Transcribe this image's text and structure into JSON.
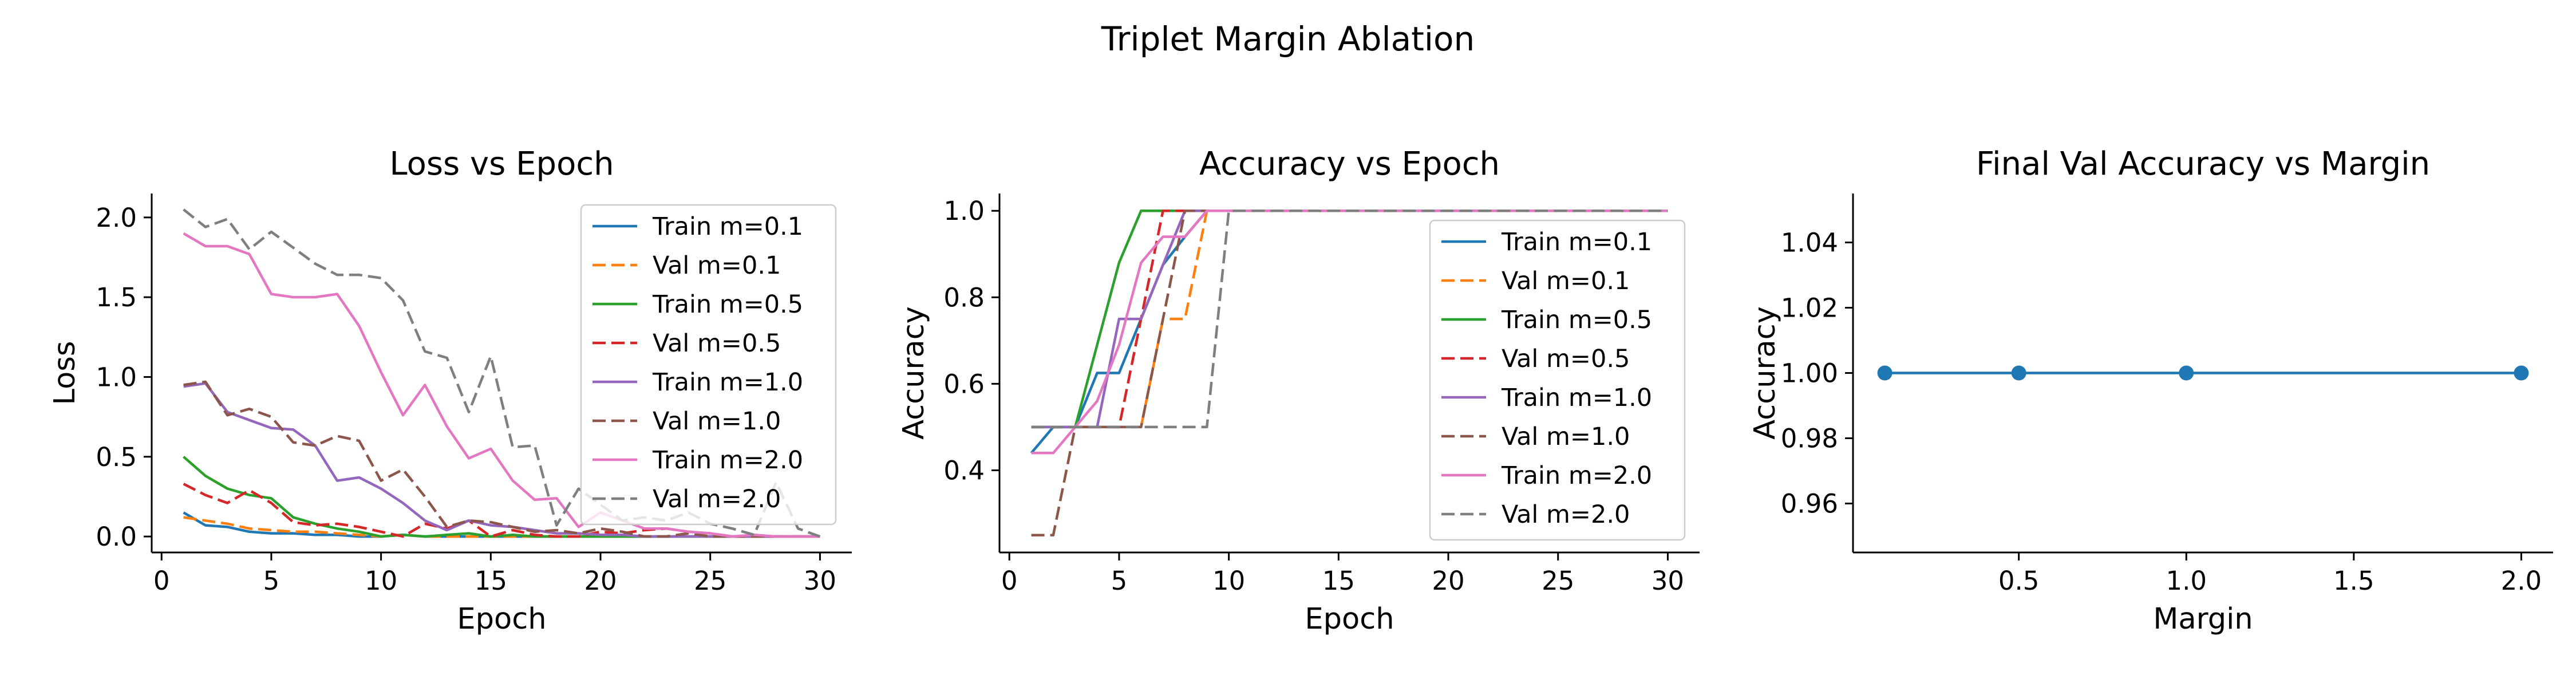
{
  "suptitle": "Triplet Margin Ablation",
  "chart_data": [
    {
      "type": "line",
      "title": "Loss vs Epoch",
      "xlabel": "Epoch",
      "ylabel": "Loss",
      "xlim": [
        -0.45,
        31.45
      ],
      "ylim": [
        -0.1,
        2.15
      ],
      "xticks": [
        0,
        5,
        10,
        15,
        20,
        25,
        30
      ],
      "yticks": [
        0.0,
        0.5,
        1.0,
        1.5,
        2.0
      ],
      "ytick_labels": [
        "0.0",
        "0.5",
        "1.0",
        "1.5",
        "2.0"
      ],
      "legend": "upper right",
      "grid": false,
      "x": [
        1,
        2,
        3,
        4,
        5,
        6,
        7,
        8,
        9,
        10,
        11,
        12,
        13,
        14,
        15,
        16,
        17,
        18,
        19,
        20,
        21,
        22,
        23,
        24,
        25,
        26,
        27,
        28,
        29,
        30
      ],
      "series": [
        {
          "name": "Train m=0.1",
          "color": "#1f77b4",
          "dash": "solid",
          "values": [
            0.15,
            0.07,
            0.06,
            0.03,
            0.02,
            0.02,
            0.01,
            0.01,
            0.0,
            0.0,
            0.01,
            0.0,
            0.0,
            0.0,
            0.0,
            0.0,
            0.0,
            0.0,
            0.0,
            0.0,
            0.0,
            0.0,
            0.0,
            0.0,
            0.0,
            0.0,
            0.0,
            0.0,
            0.0,
            0.0
          ]
        },
        {
          "name": "Val m=0.1",
          "color": "#ff7f0e",
          "dash": "dashed",
          "values": [
            0.12,
            0.1,
            0.08,
            0.05,
            0.04,
            0.03,
            0.03,
            0.02,
            0.01,
            0.0,
            0.01,
            0.0,
            0.0,
            0.0,
            0.0,
            0.0,
            0.0,
            0.0,
            0.0,
            0.0,
            0.0,
            0.0,
            0.0,
            0.0,
            0.0,
            0.0,
            0.0,
            0.0,
            0.0,
            0.0
          ]
        },
        {
          "name": "Train m=0.5",
          "color": "#2ca02c",
          "dash": "solid",
          "values": [
            0.5,
            0.38,
            0.3,
            0.26,
            0.24,
            0.12,
            0.08,
            0.05,
            0.03,
            0.0,
            0.01,
            0.0,
            0.01,
            0.02,
            0.0,
            0.01,
            0.0,
            0.0,
            0.0,
            0.0,
            0.0,
            0.0,
            0.0,
            0.0,
            0.0,
            0.0,
            0.0,
            0.0,
            0.0,
            0.0
          ]
        },
        {
          "name": "Val m=0.5",
          "color": "#d62728",
          "dash": "dashed",
          "values": [
            0.33,
            0.26,
            0.21,
            0.29,
            0.21,
            0.09,
            0.07,
            0.08,
            0.06,
            0.03,
            0.0,
            0.08,
            0.05,
            0.1,
            0.0,
            0.04,
            0.01,
            0.0,
            0.0,
            0.03,
            0.02,
            0.04,
            0.05,
            0.03,
            0.02,
            0.0,
            0.0,
            0.0,
            0.0,
            0.0
          ]
        },
        {
          "name": "Train m=1.0",
          "color": "#9467bd",
          "dash": "solid",
          "values": [
            0.94,
            0.96,
            0.78,
            0.73,
            0.68,
            0.67,
            0.57,
            0.35,
            0.37,
            0.3,
            0.21,
            0.1,
            0.04,
            0.1,
            0.07,
            0.06,
            0.04,
            0.02,
            0.02,
            0.01,
            0.01,
            0.0,
            0.0,
            0.0,
            0.0,
            0.0,
            0.0,
            0.0,
            0.0,
            0.0
          ]
        },
        {
          "name": "Val m=1.0",
          "color": "#8c564b",
          "dash": "dashed",
          "values": [
            0.95,
            0.97,
            0.76,
            0.8,
            0.75,
            0.59,
            0.57,
            0.63,
            0.6,
            0.35,
            0.42,
            0.25,
            0.06,
            0.1,
            0.09,
            0.06,
            0.03,
            0.04,
            0.02,
            0.05,
            0.03,
            0.0,
            0.0,
            0.02,
            0.0,
            0.0,
            0.0,
            0.0,
            0.0,
            0.0
          ]
        },
        {
          "name": "Train m=2.0",
          "color": "#e377c2",
          "dash": "solid",
          "values": [
            1.9,
            1.82,
            1.82,
            1.77,
            1.52,
            1.5,
            1.5,
            1.52,
            1.32,
            1.03,
            0.76,
            0.95,
            0.69,
            0.49,
            0.55,
            0.35,
            0.23,
            0.24,
            0.06,
            0.15,
            0.1,
            0.05,
            0.05,
            0.03,
            0.02,
            0.0,
            0.01,
            0.0,
            0.0,
            0.0
          ]
        },
        {
          "name": "Val m=2.0",
          "color": "#7f7f7f",
          "dash": "dashed",
          "values": [
            2.05,
            1.94,
            1.99,
            1.8,
            1.91,
            1.81,
            1.71,
            1.64,
            1.64,
            1.62,
            1.48,
            1.16,
            1.12,
            0.78,
            1.13,
            0.56,
            0.57,
            0.07,
            0.3,
            0.2,
            0.1,
            0.12,
            0.1,
            0.15,
            0.08,
            0.05,
            0.01,
            0.34,
            0.05,
            0.0
          ]
        }
      ]
    },
    {
      "type": "line",
      "title": "Accuracy vs Epoch",
      "xlabel": "Epoch",
      "ylabel": "Accuracy",
      "xlim": [
        -0.45,
        31.45
      ],
      "ylim": [
        0.21,
        1.04
      ],
      "xticks": [
        0,
        5,
        10,
        15,
        20,
        25,
        30
      ],
      "yticks": [
        0.4,
        0.6,
        0.8,
        1.0
      ],
      "ytick_labels": [
        "0.4",
        "0.6",
        "0.8",
        "1.0"
      ],
      "legend": "right",
      "grid": false,
      "x": [
        1,
        2,
        3,
        4,
        5,
        6,
        7,
        8,
        9,
        10,
        11,
        12,
        13,
        14,
        15,
        16,
        17,
        18,
        19,
        20,
        21,
        22,
        23,
        24,
        25,
        26,
        27,
        28,
        29,
        30
      ],
      "series": [
        {
          "name": "Train m=0.1",
          "color": "#1f77b4",
          "dash": "solid",
          "values": [
            0.44,
            0.5,
            0.5,
            0.625,
            0.625,
            0.75,
            0.875,
            0.94,
            1,
            1,
            1,
            1,
            1,
            1,
            1,
            1,
            1,
            1,
            1,
            1,
            1,
            1,
            1,
            1,
            1,
            1,
            1,
            1,
            1,
            1
          ]
        },
        {
          "name": "Val m=0.1",
          "color": "#ff7f0e",
          "dash": "dashed",
          "values": [
            0.5,
            0.5,
            0.5,
            0.5,
            0.5,
            0.5,
            0.75,
            0.75,
            1,
            1,
            1,
            1,
            1,
            1,
            1,
            1,
            1,
            1,
            1,
            1,
            1,
            1,
            1,
            1,
            1,
            1,
            1,
            1,
            1,
            1
          ]
        },
        {
          "name": "Train m=0.5",
          "color": "#2ca02c",
          "dash": "solid",
          "values": [
            0.5,
            0.5,
            0.5,
            0.69,
            0.88,
            1,
            1,
            1,
            1,
            1,
            1,
            1,
            1,
            1,
            1,
            1,
            1,
            1,
            1,
            1,
            1,
            1,
            1,
            1,
            1,
            1,
            1,
            1,
            1,
            1
          ]
        },
        {
          "name": "Val m=0.5",
          "color": "#d62728",
          "dash": "dashed",
          "values": [
            0.5,
            0.5,
            0.5,
            0.5,
            0.5,
            0.75,
            1,
            1,
            1,
            1,
            1,
            1,
            1,
            1,
            1,
            1,
            1,
            1,
            1,
            1,
            1,
            1,
            1,
            1,
            1,
            1,
            1,
            1,
            1,
            1
          ]
        },
        {
          "name": "Train m=1.0",
          "color": "#9467bd",
          "dash": "solid",
          "values": [
            0.5,
            0.5,
            0.5,
            0.5,
            0.75,
            0.75,
            0.875,
            1,
            1,
            1,
            1,
            1,
            1,
            1,
            1,
            1,
            1,
            1,
            1,
            1,
            1,
            1,
            1,
            1,
            1,
            1,
            1,
            1,
            1,
            1
          ]
        },
        {
          "name": "Val m=1.0",
          "color": "#8c564b",
          "dash": "dashed",
          "values": [
            0.25,
            0.25,
            0.5,
            0.5,
            0.5,
            0.5,
            0.75,
            1,
            1,
            1,
            1,
            1,
            1,
            1,
            1,
            1,
            1,
            1,
            1,
            1,
            1,
            1,
            1,
            1,
            1,
            1,
            1,
            1,
            1,
            1
          ]
        },
        {
          "name": "Train m=2.0",
          "color": "#e377c2",
          "dash": "solid",
          "values": [
            0.44,
            0.44,
            0.5,
            0.56,
            0.69,
            0.88,
            0.94,
            0.94,
            1,
            1,
            1,
            1,
            1,
            1,
            1,
            1,
            1,
            1,
            1,
            1,
            1,
            1,
            1,
            1,
            1,
            1,
            1,
            1,
            1,
            1
          ]
        },
        {
          "name": "Val m=2.0",
          "color": "#7f7f7f",
          "dash": "dashed",
          "values": [
            0.5,
            0.5,
            0.5,
            0.5,
            0.5,
            0.5,
            0.5,
            0.5,
            0.5,
            1,
            1,
            1,
            1,
            1,
            1,
            1,
            1,
            1,
            1,
            1,
            1,
            1,
            1,
            1,
            1,
            1,
            1,
            1,
            1,
            1
          ]
        }
      ]
    },
    {
      "type": "line",
      "title": "Final Val Accuracy vs Margin",
      "xlabel": "Margin",
      "ylabel": "Accuracy",
      "xlim": [
        0.005,
        2.095
      ],
      "ylim": [
        0.945,
        1.055
      ],
      "xticks": [
        0.5,
        1.0,
        1.5,
        2.0
      ],
      "xtick_labels": [
        "0.5",
        "1.0",
        "1.5",
        "2.0"
      ],
      "yticks": [
        0.96,
        0.98,
        1.0,
        1.02,
        1.04
      ],
      "ytick_labels": [
        "0.96",
        "0.98",
        "1.00",
        "1.02",
        "1.04"
      ],
      "grid": false,
      "markers": true,
      "series": [
        {
          "name": "",
          "color": "#1f77b4",
          "dash": "solid",
          "x": [
            0.1,
            0.5,
            1.0,
            2.0
          ],
          "values": [
            1.0,
            1.0,
            1.0,
            1.0
          ]
        }
      ]
    }
  ]
}
